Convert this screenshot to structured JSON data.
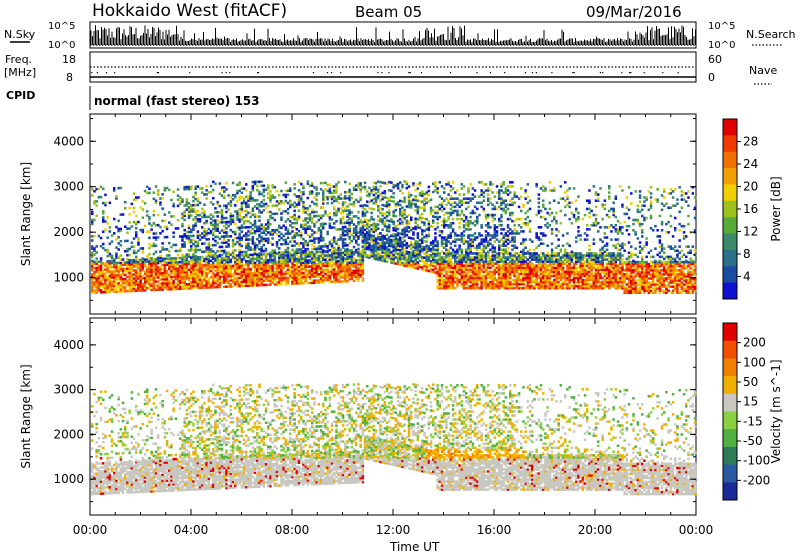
{
  "header": {
    "radar": "Hokkaido West (fitACF)",
    "beam": "Beam 05",
    "date": "09/Mar/2016"
  },
  "left_labels": {
    "nsky": "N.Sky",
    "freq_line1": "Freq.",
    "freq_line2": "[MHz]",
    "cpid": "CPID"
  },
  "right_labels": {
    "nsearch": "N.Search",
    "nave": "Nave"
  },
  "ticks": {
    "noise_top": "10^5",
    "noise_bottom": "10^0",
    "freq_top": "18",
    "freq_bottom": "8",
    "nave_top": "60",
    "nave_bottom": "0"
  },
  "cpid_text": "normal (fast stereo) 153",
  "chart_data": [
    {
      "type": "heatmap",
      "name": "power",
      "ylabel": "Slant Range [km]",
      "ylim": [
        200,
        4600
      ],
      "y_ticks": [
        "1000",
        "2000",
        "3000",
        "4000"
      ],
      "x_ticks": [
        "00:00",
        "04:00",
        "08:00",
        "12:00",
        "16:00",
        "20:00",
        "00:00"
      ],
      "colorbar": {
        "label": "Power [dB]",
        "ticks": [
          "4",
          "8",
          "12",
          "16",
          "20",
          "24",
          "28"
        ],
        "colors": [
          "#1010d0",
          "#1a4ca0",
          "#2b6f8a",
          "#3a8a6a",
          "#5aaa3a",
          "#9cc21c",
          "#f0d000",
          "#f0a000",
          "#f07000",
          "#f03a00",
          "#e00000"
        ]
      }
    },
    {
      "type": "heatmap",
      "name": "velocity",
      "ylabel": "Slant Range [km]",
      "xlabel": "Time UT",
      "ylim": [
        200,
        4600
      ],
      "y_ticks": [
        "1000",
        "2000",
        "3000",
        "4000"
      ],
      "x_ticks": [
        "00:00",
        "04:00",
        "08:00",
        "12:00",
        "16:00",
        "20:00",
        "00:00"
      ],
      "colorbar": {
        "label": "Velocity [m s^-1]",
        "ticks": [
          "200",
          "100",
          "50",
          "15",
          "-15",
          "-50",
          "-100",
          "-200"
        ],
        "colors": [
          "#1a2a9a",
          "#2a5aa0",
          "#2e7d5a",
          "#50b040",
          "#8ad040",
          "#c8c8c0",
          "#f0b000",
          "#f08000",
          "#f05000",
          "#e00000"
        ]
      }
    }
  ]
}
